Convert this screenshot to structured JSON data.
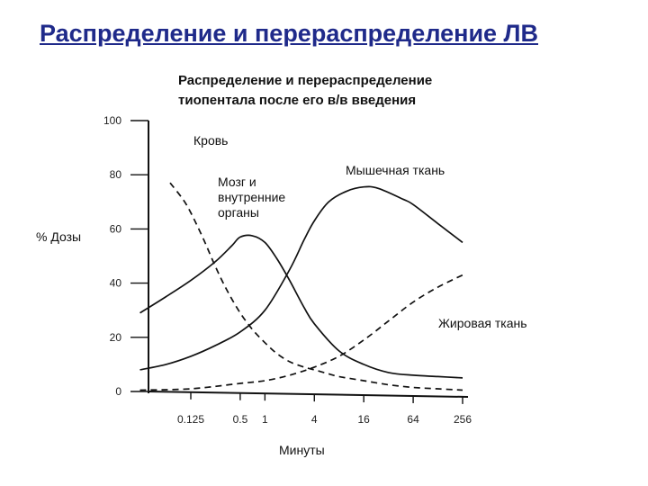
{
  "slide": {
    "title": "Распределение и перераспределение ЛВ"
  },
  "chart_data": {
    "type": "line",
    "title_lines": [
      "Распределение и перераспределение",
      "тиопентала  после его в/в введения"
    ],
    "xlabel": "Минуты",
    "ylabel": "% Дозы",
    "x_scale": "log2",
    "x_ticks": [
      0.125,
      0.5,
      1,
      4,
      16,
      64,
      256
    ],
    "x_tick_labels": [
      "0.125",
      "0.5",
      "1",
      "4",
      "16",
      "64",
      "256"
    ],
    "y_ticks": [
      0,
      20,
      40,
      60,
      80,
      100
    ],
    "y_tick_labels": [
      "0",
      "20",
      "40",
      "60",
      "80",
      "100"
    ],
    "ylim": [
      0,
      100
    ],
    "series": [
      {
        "name": "Кровь",
        "style": "dashed",
        "points": [
          [
            0.07,
            77
          ],
          [
            0.1,
            71
          ],
          [
            0.125,
            66
          ],
          [
            0.18,
            56
          ],
          [
            0.25,
            46
          ],
          [
            0.35,
            37
          ],
          [
            0.5,
            29
          ],
          [
            0.7,
            23
          ],
          [
            1,
            18
          ],
          [
            1.4,
            14
          ],
          [
            2,
            11
          ],
          [
            3,
            9
          ],
          [
            4,
            8
          ],
          [
            6,
            6.5
          ],
          [
            8,
            5.5
          ],
          [
            16,
            4
          ],
          [
            32,
            2.5
          ],
          [
            64,
            1.5
          ],
          [
            128,
            1
          ],
          [
            256,
            0.5
          ]
        ]
      },
      {
        "name": "Мозг и внутренние органы",
        "style": "solid",
        "points": [
          [
            0.03,
            29
          ],
          [
            0.0625,
            35
          ],
          [
            0.125,
            41
          ],
          [
            0.25,
            48
          ],
          [
            0.4,
            54
          ],
          [
            0.5,
            57
          ],
          [
            0.7,
            57.5
          ],
          [
            1,
            55
          ],
          [
            1.4,
            49
          ],
          [
            2,
            41
          ],
          [
            3,
            31
          ],
          [
            4,
            25
          ],
          [
            8,
            15
          ],
          [
            16,
            10
          ],
          [
            32,
            7
          ],
          [
            64,
            6
          ],
          [
            128,
            5.5
          ],
          [
            256,
            5
          ]
        ]
      },
      {
        "name": "Мышечная ткань",
        "style": "solid",
        "points": [
          [
            0.03,
            8
          ],
          [
            0.0625,
            10
          ],
          [
            0.125,
            13
          ],
          [
            0.25,
            17
          ],
          [
            0.5,
            22
          ],
          [
            1,
            30
          ],
          [
            2,
            45
          ],
          [
            3,
            56
          ],
          [
            4,
            63
          ],
          [
            6,
            70
          ],
          [
            10,
            74
          ],
          [
            16,
            75.5
          ],
          [
            24,
            75
          ],
          [
            48,
            71
          ],
          [
            64,
            69
          ],
          [
            128,
            62
          ],
          [
            256,
            55
          ]
        ]
      },
      {
        "name": "Жировая ткань",
        "style": "dashed",
        "points": [
          [
            0.03,
            0.5
          ],
          [
            0.125,
            1
          ],
          [
            0.5,
            3
          ],
          [
            1,
            4
          ],
          [
            2,
            6
          ],
          [
            4,
            9
          ],
          [
            8,
            13
          ],
          [
            16,
            19
          ],
          [
            32,
            26
          ],
          [
            64,
            33
          ],
          [
            128,
            38.5
          ],
          [
            256,
            43
          ]
        ]
      }
    ],
    "annotations": [
      "Кровь",
      "Мозг и\nвнутренние\nорганы",
      "Мышечная ткань",
      "Жировая ткань"
    ]
  },
  "colors": {
    "title": "#1f2a8a",
    "ink": "#111111"
  }
}
